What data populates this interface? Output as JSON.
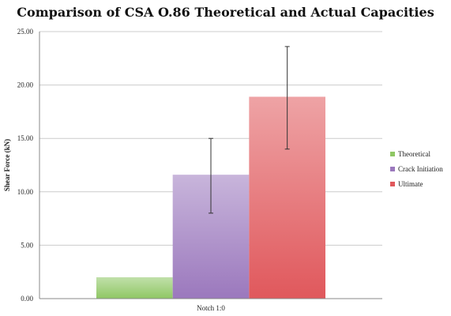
{
  "chart_data": {
    "type": "bar",
    "title": "Comparison of CSA O.86 Theoretical and Actual Capacities",
    "xlabel": "",
    "ylabel": "Shear Force (kN)",
    "categories": [
      "Notch 1:0"
    ],
    "ylim": [
      0,
      25
    ],
    "yticks": [
      "0.00",
      "5.00",
      "10.00",
      "15.00",
      "20.00",
      "25.00"
    ],
    "grid": true,
    "legend_position": "right",
    "series": [
      {
        "name": "Theoretical",
        "values": [
          2.0
        ],
        "error": [
          null
        ],
        "color": "#8fc764"
      },
      {
        "name": "Crack Initiation",
        "values": [
          11.6
        ],
        "error": [
          [
            8.0,
            15.0
          ]
        ],
        "color": "#9b78bd"
      },
      {
        "name": "Ultimate",
        "values": [
          18.9
        ],
        "error": [
          [
            14.0,
            23.6
          ]
        ],
        "color": "#e0585c"
      }
    ]
  }
}
